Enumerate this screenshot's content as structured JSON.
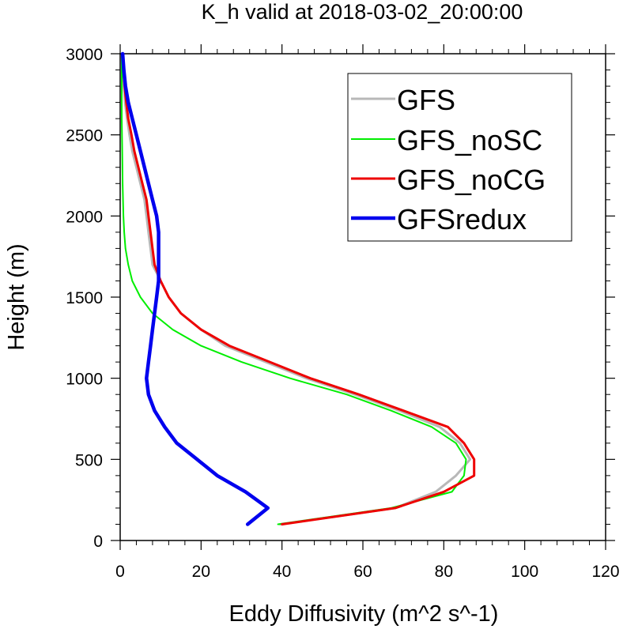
{
  "chart_data": {
    "type": "line",
    "title": "K_h valid at 2018-03-02_20:00:00",
    "xlabel": "Eddy Diffusivity (m^2 s^-1)",
    "ylabel": "Height (m)",
    "xlim": [
      0,
      120
    ],
    "ylim": [
      0,
      3000
    ],
    "xticks": [
      0,
      20,
      40,
      60,
      80,
      100,
      120
    ],
    "xtick_labels": [
      "0",
      "20",
      "40",
      "60",
      "80",
      "100",
      "120"
    ],
    "yticks": [
      0,
      500,
      1000,
      1500,
      2000,
      2500,
      3000
    ],
    "ytick_labels": [
      "0",
      "500",
      "1000",
      "1500",
      "2000",
      "2500",
      "3000"
    ],
    "grid": false,
    "legend_position": "top-right",
    "series": [
      {
        "name": "GFS",
        "color": "#b8b8b8",
        "points": [
          [
            39.5,
            100
          ],
          [
            68,
            200
          ],
          [
            78,
            300
          ],
          [
            83,
            400
          ],
          [
            86.5,
            500
          ],
          [
            84,
            600
          ],
          [
            79,
            700
          ],
          [
            69,
            800
          ],
          [
            58,
            900
          ],
          [
            46,
            1000
          ],
          [
            36,
            1100
          ],
          [
            26,
            1200
          ],
          [
            20,
            1300
          ],
          [
            15,
            1400
          ],
          [
            12,
            1500
          ],
          [
            10,
            1600
          ],
          [
            8,
            1700
          ],
          [
            7.5,
            1800
          ],
          [
            7,
            1900
          ],
          [
            6.5,
            2000
          ],
          [
            6,
            2100
          ],
          [
            5,
            2200
          ],
          [
            4,
            2300
          ],
          [
            3,
            2400
          ],
          [
            2.3,
            2500
          ],
          [
            1.7,
            2600
          ],
          [
            1.2,
            2700
          ],
          [
            0.9,
            2800
          ],
          [
            0.7,
            2900
          ],
          [
            0.6,
            3000
          ]
        ]
      },
      {
        "name": "GFS_noSC",
        "color": "#00ee00",
        "points": [
          [
            39,
            100
          ],
          [
            67,
            200
          ],
          [
            82,
            300
          ],
          [
            85,
            400
          ],
          [
            85.5,
            500
          ],
          [
            83,
            600
          ],
          [
            77,
            700
          ],
          [
            67,
            800
          ],
          [
            56,
            900
          ],
          [
            42,
            1000
          ],
          [
            30,
            1100
          ],
          [
            20,
            1200
          ],
          [
            13,
            1300
          ],
          [
            8,
            1400
          ],
          [
            5,
            1500
          ],
          [
            3,
            1600
          ],
          [
            2,
            1700
          ],
          [
            1.3,
            1800
          ],
          [
            1,
            1900
          ],
          [
            0.8,
            2000
          ],
          [
            0.6,
            2200
          ],
          [
            0.5,
            2400
          ],
          [
            0.4,
            2600
          ],
          [
            0.4,
            2800
          ],
          [
            0.4,
            3000
          ]
        ]
      },
      {
        "name": "GFS_noCG",
        "color": "#ee0000",
        "points": [
          [
            40,
            100
          ],
          [
            68,
            200
          ],
          [
            80,
            300
          ],
          [
            87.5,
            400
          ],
          [
            87.5,
            500
          ],
          [
            85,
            600
          ],
          [
            81,
            700
          ],
          [
            70,
            800
          ],
          [
            59,
            900
          ],
          [
            47,
            1000
          ],
          [
            37,
            1100
          ],
          [
            27,
            1200
          ],
          [
            20,
            1300
          ],
          [
            15,
            1400
          ],
          [
            12,
            1500
          ],
          [
            10,
            1600
          ],
          [
            8.5,
            1700
          ],
          [
            8,
            1800
          ],
          [
            7.5,
            1900
          ],
          [
            7,
            2000
          ],
          [
            6.5,
            2100
          ],
          [
            5.5,
            2200
          ],
          [
            4.5,
            2300
          ],
          [
            3.5,
            2400
          ],
          [
            2.8,
            2500
          ],
          [
            2,
            2600
          ],
          [
            1.5,
            2700
          ],
          [
            1.1,
            2800
          ],
          [
            0.8,
            2900
          ],
          [
            0.7,
            3000
          ]
        ]
      },
      {
        "name": "GFSredux",
        "color": "#0000ee",
        "points": [
          [
            31.5,
            100
          ],
          [
            36.5,
            200
          ],
          [
            31,
            300
          ],
          [
            24,
            400
          ],
          [
            19,
            500
          ],
          [
            14,
            600
          ],
          [
            11,
            700
          ],
          [
            8.5,
            800
          ],
          [
            7,
            900
          ],
          [
            6.5,
            1000
          ],
          [
            7,
            1100
          ],
          [
            7.5,
            1200
          ],
          [
            8,
            1300
          ],
          [
            8.5,
            1400
          ],
          [
            9,
            1500
          ],
          [
            9.5,
            1600
          ],
          [
            9.5,
            1700
          ],
          [
            9.5,
            1800
          ],
          [
            9.5,
            1900
          ],
          [
            9,
            2000
          ],
          [
            8,
            2100
          ],
          [
            7,
            2200
          ],
          [
            6,
            2300
          ],
          [
            5,
            2400
          ],
          [
            4,
            2500
          ],
          [
            3,
            2600
          ],
          [
            2,
            2700
          ],
          [
            1.3,
            2800
          ],
          [
            0.9,
            2900
          ],
          [
            0.6,
            3000
          ]
        ]
      }
    ]
  }
}
